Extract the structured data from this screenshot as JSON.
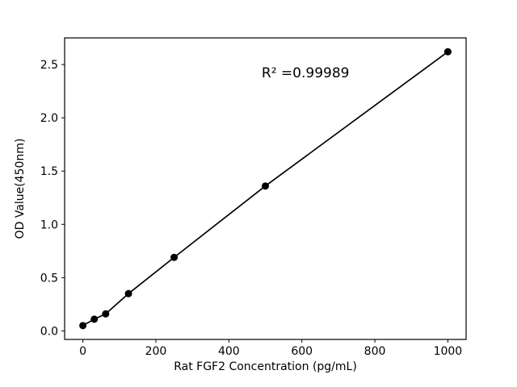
{
  "chart_data": {
    "type": "scatter",
    "title": "",
    "xlabel": "Rat FGF2 Concentration (pg/mL)",
    "ylabel": "OD Value(450nm)",
    "x": [
      0,
      31.25,
      62.5,
      125,
      250,
      500,
      1000
    ],
    "y": [
      0.05,
      0.11,
      0.16,
      0.35,
      0.69,
      1.36,
      2.62
    ],
    "line_through_points": true,
    "annotation": {
      "text": "R² =0.99989",
      "x": 610,
      "y": 2.38
    },
    "xlim": [
      -50,
      1050
    ],
    "ylim": [
      -0.08,
      2.75
    ],
    "xticks": [
      0,
      200,
      400,
      600,
      800,
      1000
    ],
    "xtick_labels": [
      "0",
      "200",
      "400",
      "600",
      "800",
      "1000"
    ],
    "yticks": [
      0.0,
      0.5,
      1.0,
      1.5,
      2.0,
      2.5
    ],
    "ytick_labels": [
      "0.0",
      "0.5",
      "1.0",
      "1.5",
      "2.0",
      "2.5"
    ],
    "grid": false,
    "legend": null,
    "marker_color": "#000000",
    "line_color": "#000000",
    "axis_color": "#000000",
    "background": "#ffffff"
  }
}
